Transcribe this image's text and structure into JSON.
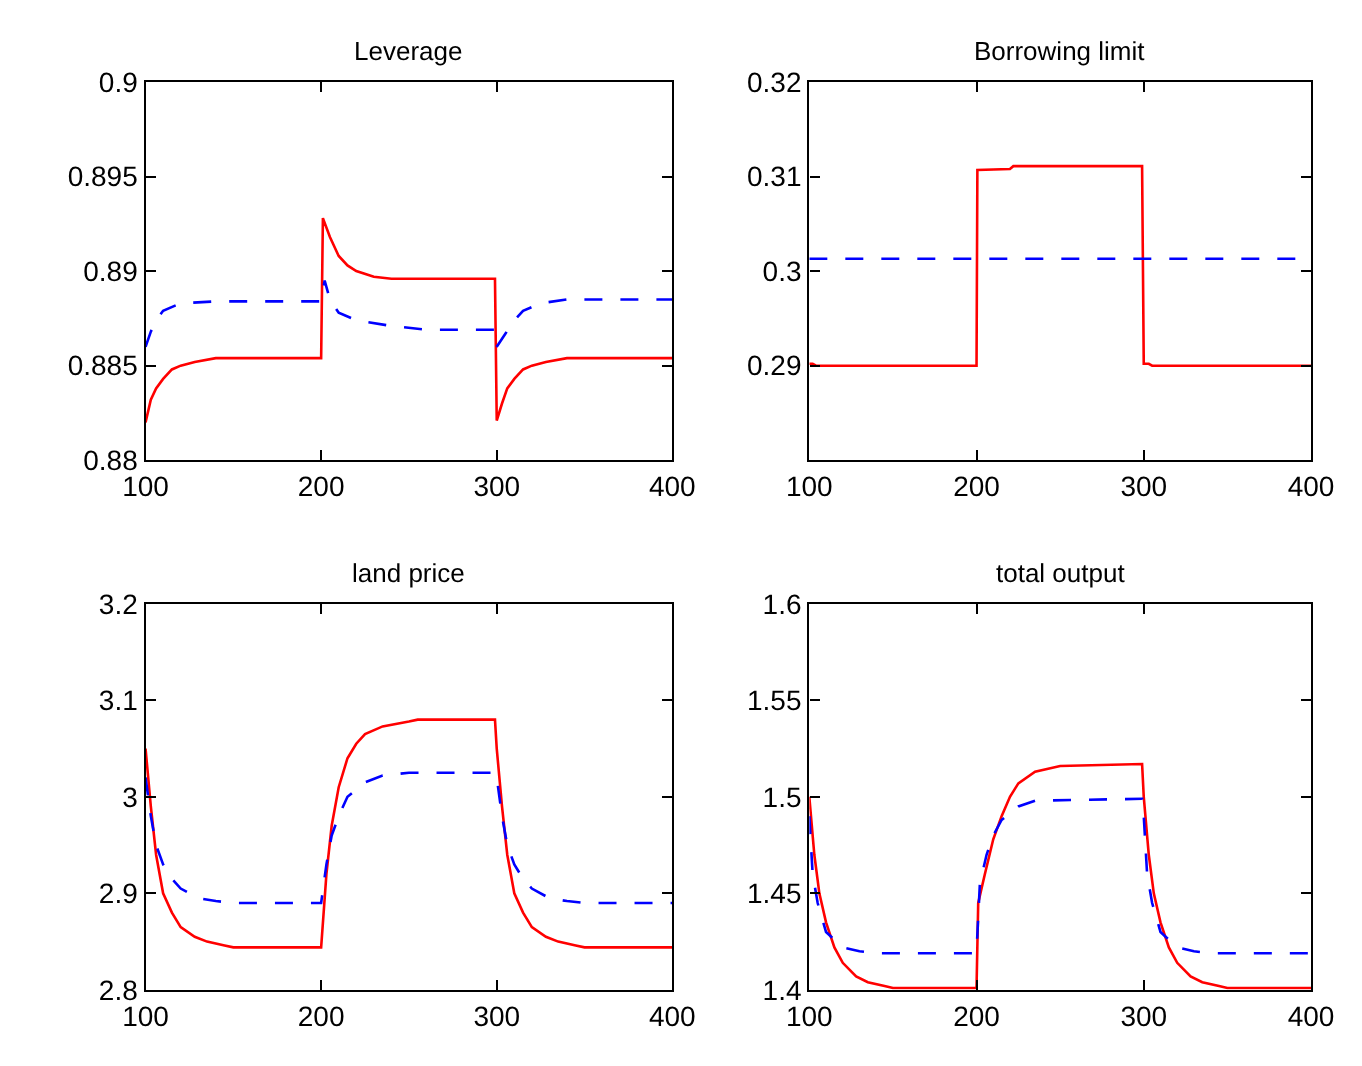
{
  "chart_data": [
    {
      "type": "line",
      "title": "Leverage",
      "xlim": [
        100,
        400
      ],
      "xticks": [
        100,
        200,
        300,
        400
      ],
      "ylim": [
        0.88,
        0.9
      ],
      "yticks": [
        0.88,
        0.885,
        0.89,
        0.895,
        0.9
      ],
      "series": [
        {
          "color": "#ff0000",
          "line_style": "solid",
          "x": [
            100,
            103,
            106,
            110,
            115,
            120,
            128,
            140,
            200,
            201,
            205,
            210,
            215,
            220,
            230,
            240,
            299,
            300,
            303,
            306,
            310,
            315,
            320,
            328,
            340,
            400
          ],
          "values": [
            0.882,
            0.8832,
            0.8838,
            0.8843,
            0.8848,
            0.885,
            0.8852,
            0.8854,
            0.8854,
            0.8928,
            0.8918,
            0.8908,
            0.8903,
            0.89,
            0.8897,
            0.8896,
            0.8896,
            0.8821,
            0.883,
            0.8838,
            0.8843,
            0.8848,
            0.885,
            0.8852,
            0.8854,
            0.8854
          ]
        },
        {
          "color": "#0000ff",
          "line_style": "dashed",
          "x": [
            100,
            103,
            106,
            110,
            120,
            140,
            200,
            202,
            205,
            210,
            220,
            240,
            260,
            299,
            300,
            305,
            310,
            315,
            325,
            340,
            400
          ],
          "values": [
            0.886,
            0.8868,
            0.8874,
            0.8879,
            0.8883,
            0.8884,
            0.8884,
            0.8895,
            0.8885,
            0.8878,
            0.8874,
            0.8871,
            0.8869,
            0.8869,
            0.886,
            0.8867,
            0.8874,
            0.8879,
            0.8883,
            0.8885,
            0.8885
          ]
        }
      ]
    },
    {
      "type": "line",
      "title": "Borrowing limit",
      "xlim": [
        100,
        400
      ],
      "xticks": [
        100,
        200,
        300,
        400
      ],
      "ylim": [
        0.28,
        0.32
      ],
      "yticks": [
        0.29,
        0.3,
        0.31,
        0.32
      ],
      "series": [
        {
          "color": "#ff0000",
          "line_style": "solid",
          "x": [
            100,
            102,
            104,
            200,
            200.5,
            220,
            222,
            299,
            300,
            303,
            305,
            400
          ],
          "values": [
            0.2902,
            0.2902,
            0.29,
            0.29,
            0.3107,
            0.3108,
            0.3111,
            0.3111,
            0.2902,
            0.2902,
            0.29,
            0.29
          ]
        },
        {
          "color": "#0000ff",
          "line_style": "dashed",
          "x": [
            100,
            400
          ],
          "values": [
            0.3013,
            0.3013
          ]
        }
      ]
    },
    {
      "type": "line",
      "title": "land price",
      "xlim": [
        100,
        400
      ],
      "xticks": [
        100,
        200,
        300,
        400
      ],
      "ylim": [
        2.8,
        3.2
      ],
      "yticks": [
        2.8,
        2.9,
        3,
        3.1,
        3.2
      ],
      "series": [
        {
          "color": "#ff0000",
          "line_style": "solid",
          "x": [
            100,
            103,
            106,
            110,
            115,
            120,
            128,
            135,
            145,
            150,
            200,
            203,
            206,
            210,
            215,
            220,
            225,
            235,
            250,
            255,
            299,
            300,
            303,
            306,
            310,
            315,
            320,
            328,
            335,
            345,
            350,
            400
          ],
          "values": [
            3.05,
            2.99,
            2.94,
            2.9,
            2.88,
            2.865,
            2.855,
            2.85,
            2.846,
            2.844,
            2.844,
            2.92,
            2.97,
            3.01,
            3.04,
            3.055,
            3.065,
            3.073,
            3.078,
            3.08,
            3.08,
            3.05,
            2.99,
            2.94,
            2.9,
            2.88,
            2.865,
            2.855,
            2.85,
            2.846,
            2.844,
            2.844
          ]
        },
        {
          "color": "#0000ff",
          "line_style": "dashed",
          "x": [
            100,
            103,
            106,
            110,
            115,
            120,
            130,
            140,
            150,
            200,
            203,
            206,
            210,
            215,
            225,
            235,
            250,
            299,
            300,
            303,
            306,
            310,
            315,
            320,
            330,
            340,
            350,
            400
          ],
          "values": [
            3.02,
            2.98,
            2.95,
            2.93,
            2.915,
            2.905,
            2.895,
            2.892,
            2.89,
            2.89,
            2.93,
            2.96,
            2.98,
            3.0,
            3.015,
            3.022,
            3.025,
            3.025,
            3.02,
            2.98,
            2.95,
            2.93,
            2.915,
            2.905,
            2.895,
            2.892,
            2.89,
            2.89
          ]
        }
      ]
    },
    {
      "type": "line",
      "title": "total output",
      "xlim": [
        100,
        400
      ],
      "xticks": [
        100,
        200,
        300,
        400
      ],
      "ylim": [
        1.4,
        1.6
      ],
      "yticks": [
        1.4,
        1.45,
        1.5,
        1.55,
        1.6
      ],
      "series": [
        {
          "color": "#ff0000",
          "line_style": "solid",
          "x": [
            100,
            103,
            106,
            110,
            115,
            120,
            128,
            135,
            145,
            150,
            200,
            201,
            205,
            210,
            215,
            220,
            225,
            235,
            250,
            299,
            300,
            303,
            306,
            310,
            315,
            320,
            328,
            335,
            345,
            350,
            400
          ],
          "values": [
            1.5,
            1.47,
            1.45,
            1.435,
            1.422,
            1.414,
            1.407,
            1.404,
            1.402,
            1.401,
            1.401,
            1.445,
            1.46,
            1.478,
            1.49,
            1.5,
            1.507,
            1.513,
            1.516,
            1.517,
            1.5,
            1.47,
            1.45,
            1.435,
            1.422,
            1.414,
            1.407,
            1.404,
            1.402,
            1.401,
            1.401
          ]
        },
        {
          "color": "#0000ff",
          "line_style": "dashed",
          "x": [
            100,
            102,
            105,
            110,
            120,
            130,
            140,
            199,
            200,
            202,
            206,
            210,
            215,
            225,
            235,
            299,
            300,
            302,
            305,
            310,
            320,
            330,
            340,
            400
          ],
          "values": [
            1.49,
            1.46,
            1.445,
            1.43,
            1.422,
            1.42,
            1.419,
            1.419,
            1.42,
            1.455,
            1.47,
            1.48,
            1.488,
            1.495,
            1.498,
            1.499,
            1.49,
            1.46,
            1.445,
            1.43,
            1.422,
            1.42,
            1.419,
            1.419
          ]
        }
      ]
    }
  ]
}
